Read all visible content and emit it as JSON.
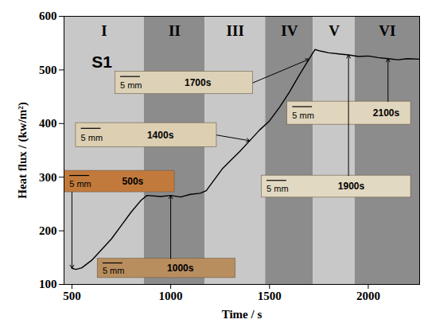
{
  "chart_data": {
    "type": "line",
    "x_label": "Time / s",
    "y_label": "Heat flux / (kw/m²)",
    "xlim": [
      460,
      2260
    ],
    "ylim": [
      100,
      600
    ],
    "xticks": [
      500,
      1000,
      1500,
      2000
    ],
    "yticks": [
      100,
      200,
      300,
      400,
      500,
      600
    ],
    "grid": false,
    "color": "#000000",
    "annotation": "S1",
    "x": [
      500,
      520,
      550,
      600,
      650,
      700,
      750,
      800,
      850,
      880,
      950,
      1000,
      1050,
      1100,
      1150,
      1180,
      1220,
      1260,
      1300,
      1350,
      1400,
      1450,
      1500,
      1550,
      1600,
      1650,
      1700,
      1730,
      1760,
      1800,
      1850,
      1900,
      1950,
      2000,
      2050,
      2100,
      2150,
      2200,
      2260
    ],
    "values": [
      130,
      128,
      131,
      145,
      165,
      185,
      210,
      235,
      257,
      266,
      264,
      266,
      263,
      268,
      270,
      275,
      295,
      315,
      330,
      348,
      368,
      388,
      405,
      430,
      458,
      490,
      520,
      538,
      535,
      532,
      530,
      528,
      525,
      526,
      523,
      521,
      519,
      521,
      520
    ],
    "regions": [
      {
        "label": "I",
        "start": 460,
        "end": 866,
        "color": "#c8c8c8"
      },
      {
        "label": "II",
        "start": 866,
        "end": 1173,
        "color": "#8c8c8c"
      },
      {
        "label": "III",
        "start": 1173,
        "end": 1480,
        "color": "#c8c8c8"
      },
      {
        "label": "IV",
        "start": 1480,
        "end": 1722,
        "color": "#8c8c8c"
      },
      {
        "label": "V",
        "start": 1722,
        "end": 1933,
        "color": "#c8c8c8"
      },
      {
        "label": "VI",
        "start": 1933,
        "end": 2260,
        "color": "#8c8c8c"
      }
    ],
    "photos": [
      {
        "label": "500s",
        "scale_bar": "5 mm",
        "time": 500,
        "heat_flux": 130,
        "color": "#c27a3c"
      },
      {
        "label": "1000s",
        "scale_bar": "5 mm",
        "time": 1000,
        "heat_flux": 266,
        "color": "#b98e5e"
      },
      {
        "label": "1400s",
        "scale_bar": "5 mm",
        "time": 1400,
        "heat_flux": 368,
        "color": "#dccfb2"
      },
      {
        "label": "1700s",
        "scale_bar": "5 mm",
        "time": 1700,
        "heat_flux": 520,
        "color": "#ddd2b8"
      },
      {
        "label": "1900s",
        "scale_bar": "5 mm",
        "time": 1900,
        "heat_flux": 528,
        "color": "#e2d9c2"
      },
      {
        "label": "2100s",
        "scale_bar": "5 mm",
        "time": 2100,
        "heat_flux": 521,
        "color": "#e0d6bd"
      }
    ]
  }
}
